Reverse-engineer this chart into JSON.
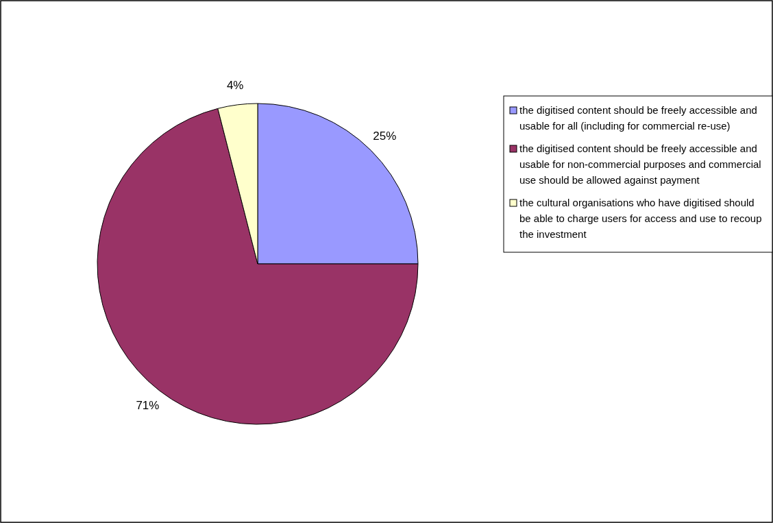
{
  "chart_data": {
    "type": "pie",
    "categories": [
      "the digitised content should be freely accessible and usable for all (including for commercial re-use)",
      "the digitised content should be freely accessible and usable for non-commercial purposes and commercial use should be allowed against payment",
      "the cultural organisations who have digitised should be able to charge users for access and use to recoup the investment"
    ],
    "values": [
      25,
      71,
      4
    ],
    "value_labels": [
      "25%",
      "71%",
      "4%"
    ],
    "colors": [
      "#9999ff",
      "#993366",
      "#ffffcc"
    ],
    "legend": "right"
  }
}
